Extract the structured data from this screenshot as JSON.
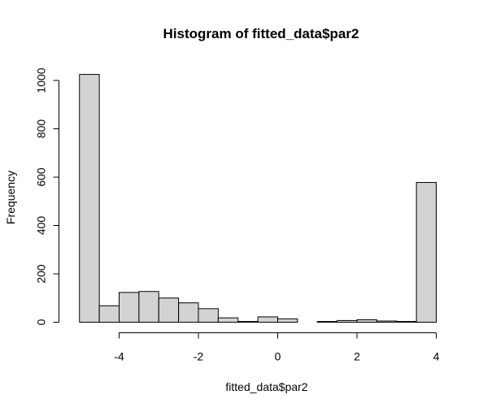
{
  "chart_data": {
    "type": "bar",
    "subtype": "histogram",
    "title": "Histogram of fitted_data$par2",
    "xlabel": "fitted_data$par2",
    "ylabel": "Frequency",
    "bins": [
      {
        "x0": -5.0,
        "x1": -4.5,
        "count": 1025
      },
      {
        "x0": -4.5,
        "x1": -4.0,
        "count": 68
      },
      {
        "x0": -4.0,
        "x1": -3.5,
        "count": 123
      },
      {
        "x0": -3.5,
        "x1": -3.0,
        "count": 127
      },
      {
        "x0": -3.0,
        "x1": -2.5,
        "count": 100
      },
      {
        "x0": -2.5,
        "x1": -2.0,
        "count": 80
      },
      {
        "x0": -2.0,
        "x1": -1.5,
        "count": 56
      },
      {
        "x0": -1.5,
        "x1": -1.0,
        "count": 18
      },
      {
        "x0": -1.0,
        "x1": -0.5,
        "count": 3
      },
      {
        "x0": -0.5,
        "x1": 0.0,
        "count": 22
      },
      {
        "x0": 0.0,
        "x1": 0.5,
        "count": 14
      },
      {
        "x0": 0.5,
        "x1": 1.0,
        "count": 0
      },
      {
        "x0": 1.0,
        "x1": 1.5,
        "count": 3
      },
      {
        "x0": 1.5,
        "x1": 2.0,
        "count": 7
      },
      {
        "x0": 2.0,
        "x1": 2.5,
        "count": 10
      },
      {
        "x0": 2.5,
        "x1": 3.0,
        "count": 5
      },
      {
        "x0": 3.0,
        "x1": 3.5,
        "count": 3
      },
      {
        "x0": 3.5,
        "x1": 4.0,
        "count": 578
      }
    ],
    "xticks": [
      -4,
      -2,
      0,
      2,
      4
    ],
    "xtick_labels": [
      "-4",
      "-2",
      "0",
      "2",
      "4"
    ],
    "yticks": [
      0,
      200,
      400,
      600,
      800,
      1000
    ],
    "ytick_labels": [
      "0",
      "200",
      "400",
      "600",
      "800",
      "1000"
    ],
    "xlim": [
      -5,
      4
    ],
    "ylim": [
      0,
      1025
    ],
    "grid": false,
    "bar_fill": "#d3d3d3",
    "bar_stroke": "#000000"
  }
}
